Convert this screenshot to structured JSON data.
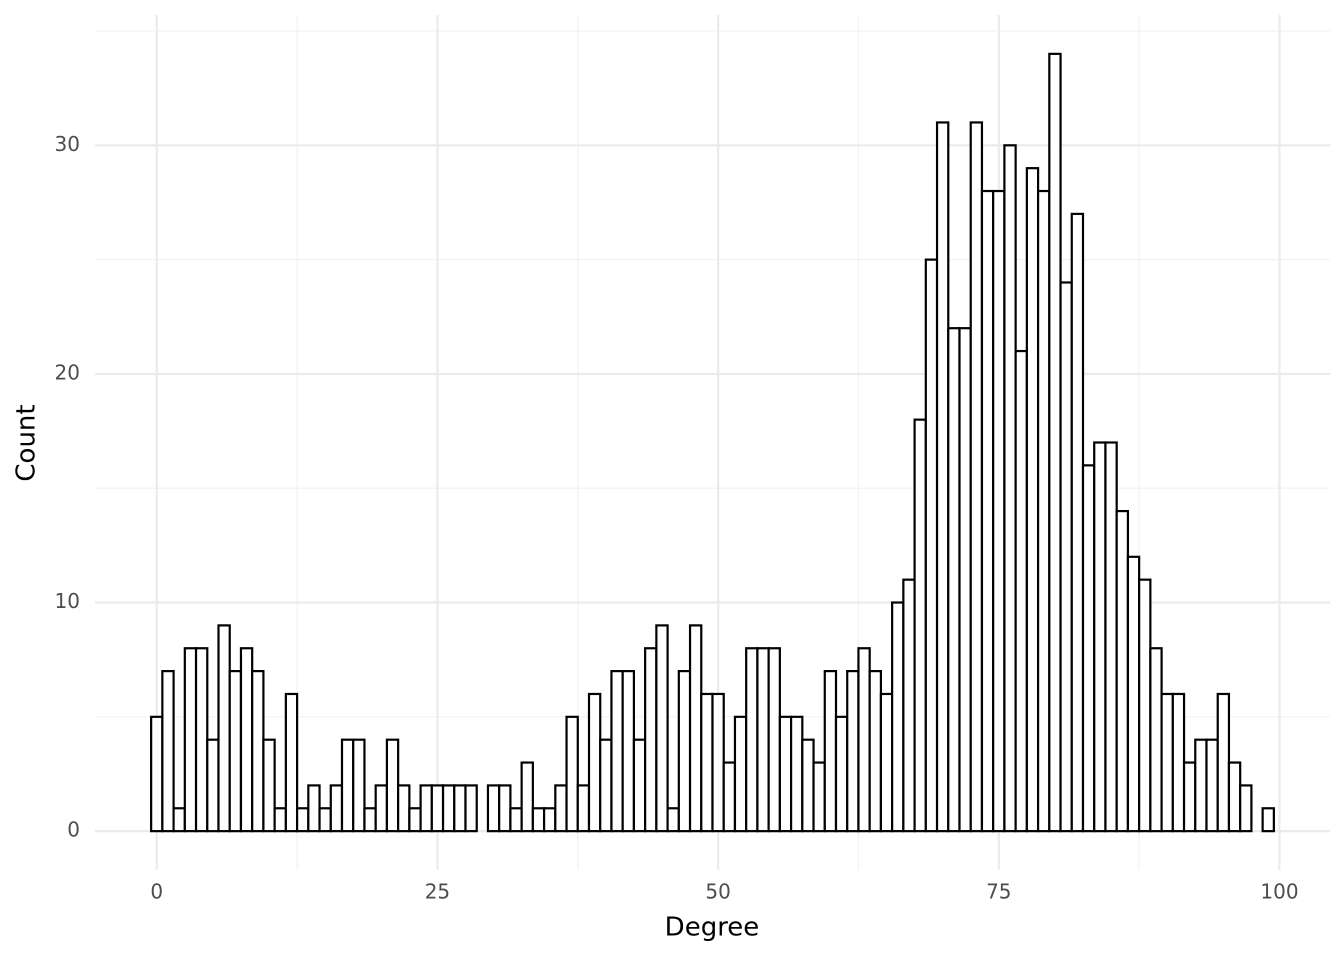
{
  "chart_data": {
    "type": "histogram",
    "x_label": "Degree",
    "y_label": "Count",
    "bins": [
      -0.5,
      0.5,
      1.5,
      2.5,
      3.5,
      4.5,
      5.5,
      6.5,
      7.5,
      8.5,
      9.5,
      10.5,
      11.5,
      12.5,
      13.5,
      14.5,
      15.5,
      16.5,
      17.5,
      18.5,
      19.5,
      20.5,
      21.5,
      22.5,
      23.5,
      24.5,
      25.5,
      26.5,
      27.5,
      28.5,
      29.5,
      30.5,
      31.5,
      32.5,
      33.5,
      34.5,
      35.5,
      36.5,
      37.5,
      38.5,
      39.5,
      40.5,
      41.5,
      42.5,
      43.5,
      44.5,
      45.5,
      46.5,
      47.5,
      48.5,
      49.5,
      50.5,
      51.5,
      52.5,
      53.5,
      54.5,
      55.5,
      56.5,
      57.5,
      58.5,
      59.5,
      60.5,
      61.5,
      62.5,
      63.5,
      64.5,
      65.5,
      66.5,
      67.5,
      68.5,
      69.5,
      70.5,
      71.5,
      72.5,
      73.5,
      74.5,
      75.5,
      76.5,
      77.5,
      78.5,
      79.5,
      80.5,
      81.5,
      82.5,
      83.5,
      84.5,
      85.5,
      86.5,
      87.5,
      88.5,
      89.5,
      90.5,
      91.5,
      92.5,
      93.5,
      94.5,
      95.5,
      96.5,
      97.5,
      98.5,
      99.5
    ],
    "values": [
      5,
      7,
      1,
      8,
      8,
      4,
      9,
      7,
      8,
      7,
      4,
      1,
      6,
      1,
      2,
      1,
      2,
      4,
      4,
      1,
      2,
      4,
      2,
      1,
      2,
      2,
      2,
      2,
      2,
      0,
      2,
      2,
      1,
      3,
      1,
      1,
      2,
      5,
      2,
      6,
      4,
      7,
      7,
      4,
      8,
      9,
      1,
      7,
      9,
      6,
      6,
      3,
      5,
      8,
      8,
      8,
      5,
      5,
      4,
      3,
      7,
      5,
      7,
      8,
      7,
      6,
      10,
      11,
      18,
      25,
      31,
      22,
      22,
      31,
      28,
      28,
      30,
      21,
      29,
      28,
      34,
      24,
      27,
      16,
      17,
      17,
      14,
      12,
      11,
      8,
      6,
      6,
      3,
      4,
      4,
      6,
      3,
      2,
      0,
      1
    ],
    "color": "#ffffff",
    "edge_color": "#000000",
    "xlim": [
      -5.5,
      104.5
    ],
    "xticks": [
      0,
      25,
      50,
      75,
      100
    ],
    "ylim": [
      -1.7,
      35.7
    ],
    "yticks": [
      0,
      10,
      20,
      30
    ],
    "grid": true
  }
}
